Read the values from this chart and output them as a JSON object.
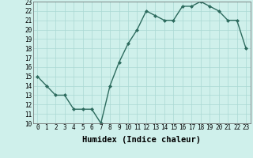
{
  "x": [
    0,
    1,
    2,
    3,
    4,
    5,
    6,
    7,
    8,
    9,
    10,
    11,
    12,
    13,
    14,
    15,
    16,
    17,
    18,
    19,
    20,
    21,
    22,
    23
  ],
  "y": [
    15,
    14,
    13,
    13,
    11.5,
    11.5,
    11.5,
    10,
    14,
    16.5,
    18.5,
    20,
    22,
    21.5,
    21,
    21,
    22.5,
    22.5,
    23,
    22.5,
    22,
    21,
    21,
    18
  ],
  "line_color": "#2d6b5e",
  "marker": "D",
  "marker_size": 2.0,
  "bg_color": "#cff0eb",
  "grid_color": "#aad8d3",
  "xlabel": "Humidex (Indice chaleur)",
  "xlim": [
    -0.5,
    23.5
  ],
  "ylim": [
    10,
    23
  ],
  "yticks": [
    10,
    11,
    12,
    13,
    14,
    15,
    16,
    17,
    18,
    19,
    20,
    21,
    22,
    23
  ],
  "xticks": [
    0,
    1,
    2,
    3,
    4,
    5,
    6,
    7,
    8,
    9,
    10,
    11,
    12,
    13,
    14,
    15,
    16,
    17,
    18,
    19,
    20,
    21,
    22,
    23
  ],
  "tick_fontsize": 5.5,
  "xlabel_fontsize": 7.5,
  "line_width": 1.0
}
